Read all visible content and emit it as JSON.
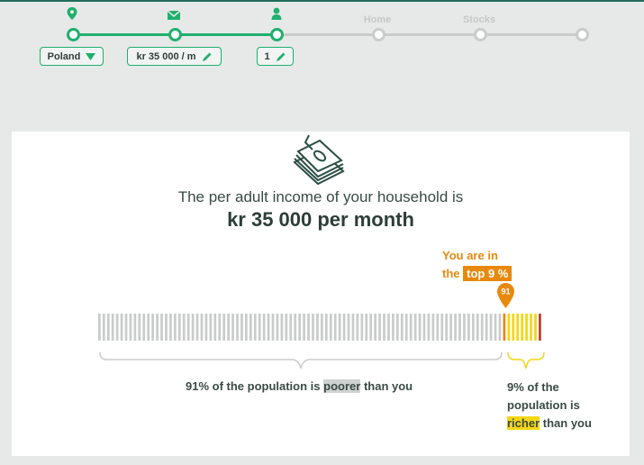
{
  "stepper": {
    "steps": [
      {
        "icon": "location-pin-icon",
        "value": "Poland",
        "control": "dropdown",
        "done": true
      },
      {
        "icon": "envelope-icon",
        "value": "kr 35 000 / m",
        "control": "edit",
        "done": true
      },
      {
        "icon": "person-icon",
        "value": "1",
        "control": "edit",
        "done": true
      },
      {
        "label": "Home",
        "done": false
      },
      {
        "label": "Stocks",
        "done": false
      },
      {
        "done": false
      }
    ]
  },
  "result": {
    "icon": "money-icon",
    "headline": "The per adult income of your household is",
    "amount": "kr 35 000 per month",
    "callout_prefix": "You are in",
    "callout_the": "the",
    "callout_highlight": "top 9 %",
    "percentile": "91",
    "poorer": {
      "prefix": "91% of the population is",
      "highlight": "poorer",
      "suffix": "than you"
    },
    "richer": {
      "prefix": "9% of the",
      "line2": "population is",
      "highlight": "richer",
      "suffix": "than you"
    }
  },
  "distribution": {
    "total_bars": 100,
    "poorer_percent": 91,
    "poorer_color": "#c9cccb",
    "richer_color": "#f5d616",
    "marker_color": "#e8890f",
    "edge_color": "#c0392b"
  },
  "colors": {
    "accent": "#1fb06e",
    "orange": "#e8890f",
    "text": "#3a4a45"
  }
}
